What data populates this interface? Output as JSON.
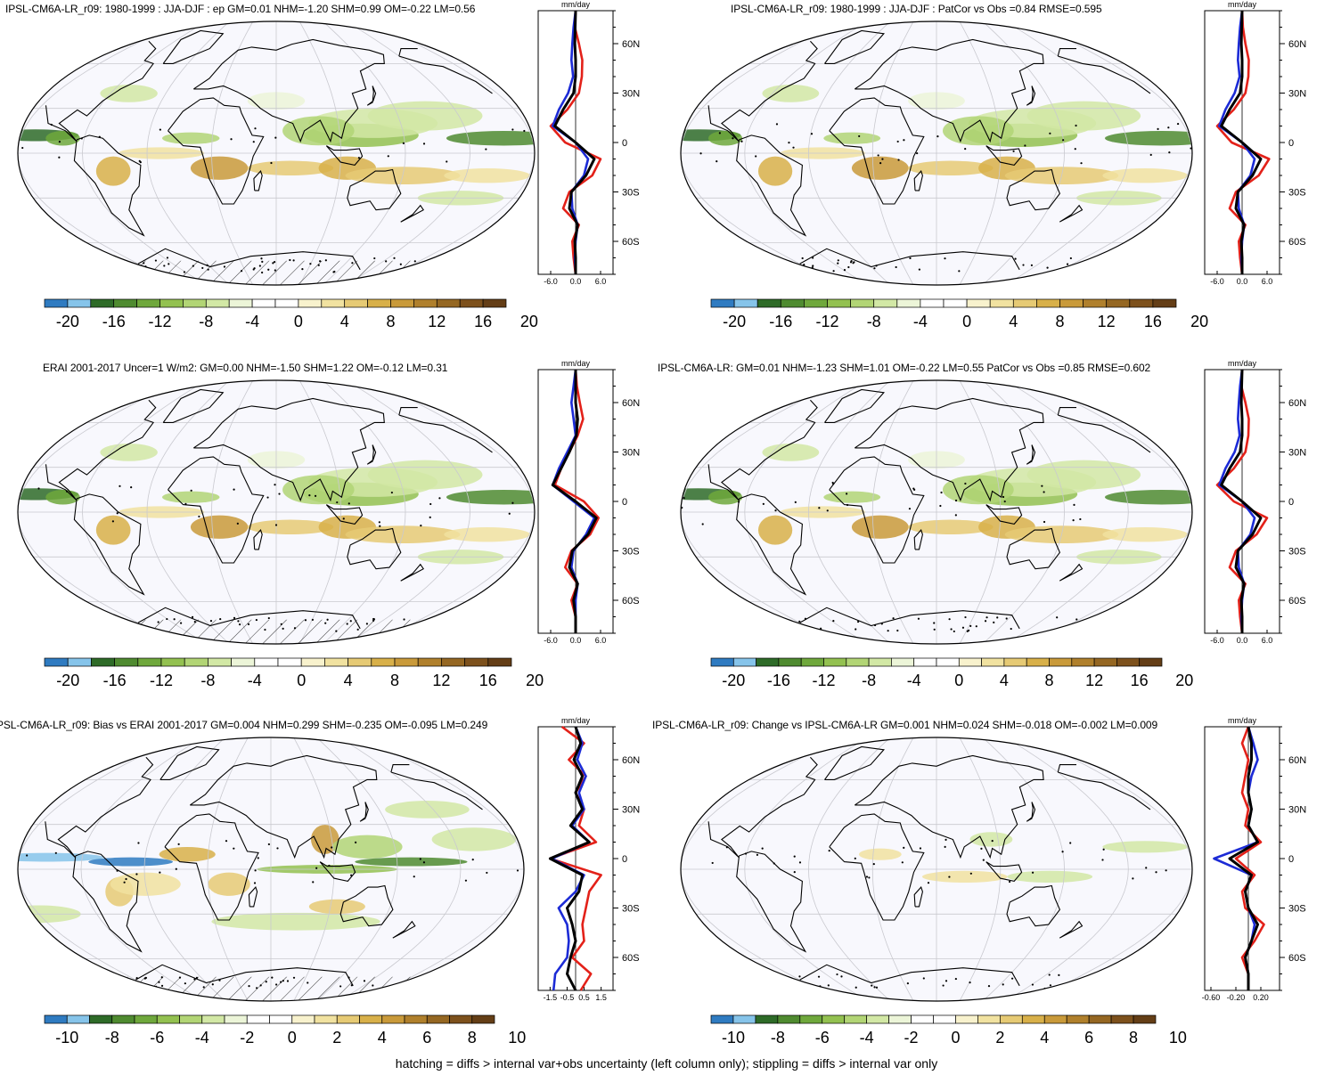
{
  "panels": [
    {
      "id": "p1",
      "title": "IPSL-CM6A-LR_r09: 1980-1999 : JJA-DJF : ep GM=0.01 NHM=-1.20 SHM=0.99 OM=-0.22 LM=0.56",
      "unit": "mm/day",
      "colorbar_ticks": [
        "-20",
        "-16",
        "-12",
        "-8",
        "-4",
        "0",
        "4",
        "8",
        "12",
        "16",
        "20"
      ],
      "profile_xticks": [
        "-6.0",
        "0.0",
        "6.0"
      ],
      "profile_lat_ticks": [
        "60N",
        "30N",
        "0",
        "30S",
        "60S"
      ],
      "hatching": true
    },
    {
      "id": "p2",
      "title": "IPSL-CM6A-LR_r09: 1980-1999 : JJA-DJF : PatCor vs Obs =0.84 RMSE=0.595",
      "unit": "mm/day",
      "colorbar_ticks": [
        "-20",
        "-16",
        "-12",
        "-8",
        "-4",
        "0",
        "4",
        "8",
        "12",
        "16",
        "20"
      ],
      "profile_xticks": [
        "-6.0",
        "0.0",
        "6.0"
      ],
      "profile_lat_ticks": [
        "60N",
        "30N",
        "0",
        "30S",
        "60S"
      ],
      "hatching": false
    },
    {
      "id": "p3",
      "title": "ERAI 2001-2017 Uncer=1 W/m2: GM=0.00 NHM=-1.50 SHM=1.22 OM=-0.12 LM=0.31",
      "unit": "mm/day",
      "colorbar_ticks": [
        "-20",
        "-16",
        "-12",
        "-8",
        "-4",
        "0",
        "4",
        "8",
        "12",
        "16",
        "20"
      ],
      "profile_xticks": [
        "-6.0",
        "0.0",
        "6.0"
      ],
      "profile_lat_ticks": [
        "60N",
        "30N",
        "0",
        "30S",
        "60S"
      ],
      "hatching": true
    },
    {
      "id": "p4",
      "title": "IPSL-CM6A-LR: GM=0.01 NHM=-1.23 SHM=1.01 OM=-0.22 LM=0.55 PatCor vs Obs =0.85 RMSE=0.602",
      "unit": "mm/day",
      "colorbar_ticks": [
        "-20",
        "-16",
        "-12",
        "-8",
        "-4",
        "0",
        "4",
        "8",
        "12",
        "16",
        "20"
      ],
      "profile_xticks": [
        "-6.0",
        "0.0",
        "6.0"
      ],
      "profile_lat_ticks": [
        "60N",
        "30N",
        "0",
        "30S",
        "60S"
      ],
      "hatching": false
    },
    {
      "id": "p5",
      "title": "PSL-CM6A-LR_r09: Bias vs ERAI 2001-2017 GM=0.004 NHM=0.299 SHM=-0.235 OM=-0.095 LM=0.249",
      "unit": "mm/day",
      "colorbar_ticks": [
        "-10",
        "-8",
        "-6",
        "-4",
        "-2",
        "0",
        "2",
        "4",
        "6",
        "8",
        "10"
      ],
      "profile_xticks": [
        "-1.5",
        "-0.5",
        "0.5",
        "1.5"
      ],
      "profile_lat_ticks": [
        "60N",
        "30N",
        "0",
        "30S",
        "60S"
      ],
      "hatching": true
    },
    {
      "id": "p6",
      "title": "IPSL-CM6A-LR_r09: Change vs IPSL-CM6A-LR GM=0.001 NHM=0.024 SHM=-0.018 OM=-0.002 LM=0.009",
      "unit": "mm/day",
      "colorbar_ticks": [
        "-10",
        "-8",
        "-6",
        "-4",
        "-2",
        "0",
        "2",
        "4",
        "6",
        "8",
        "10"
      ],
      "profile_xticks": [
        "-0.60",
        "-0.20",
        "0.20"
      ],
      "profile_lat_ticks": [
        "60N",
        "30N",
        "0",
        "30S",
        "60S"
      ],
      "hatching": false
    }
  ],
  "colorbar_colors": [
    "#2f7bc1",
    "#86c4ea",
    "#2e6b28",
    "#4f8b30",
    "#6fa83c",
    "#93c150",
    "#b2d575",
    "#d2e8a5",
    "#ecf5d8",
    "#ffffff",
    "#ffffff",
    "#f8f2cd",
    "#f1e2a0",
    "#e6ca74",
    "#d8b049",
    "#c99a3a",
    "#b0802c",
    "#956722",
    "#7d511c",
    "#643e16"
  ],
  "footnote": "hatching = diffs > internal var+obs uncertainty (left column only); stippling = diffs > internal var only",
  "chart_data": [
    {
      "type": "line",
      "title": "IPSL-CM6A-LR_r09: 1980-1999 : JJA-DJF : ep GM=0.01 NHM=-1.20 SHM=0.99 OM=-0.22 LM=0.56",
      "xlabel": "mm/day",
      "xlim": [
        -9,
        9
      ],
      "y": [
        80,
        70,
        60,
        50,
        40,
        30,
        20,
        10,
        0,
        -10,
        -20,
        -30,
        -40,
        -50,
        -60,
        -70,
        -80
      ],
      "series": [
        {
          "color": "#e32119",
          "values": [
            0.0,
            -0.2,
            0.8,
            1.6,
            1.5,
            0.8,
            -2.0,
            -6.0,
            -2.5,
            6.0,
            4.0,
            -1.5,
            -3.0,
            0.8,
            -0.8,
            -0.5,
            0.0
          ]
        },
        {
          "color": "#1c2bd6",
          "values": [
            0.0,
            -0.5,
            -0.8,
            -1.0,
            -0.6,
            -1.8,
            -4.0,
            -5.5,
            0.0,
            3.0,
            2.0,
            -1.0,
            -0.8,
            0.5,
            0.0,
            -0.2,
            0.0
          ]
        },
        {
          "color": "#000000",
          "values": [
            0.0,
            -0.1,
            -0.2,
            0.0,
            0.0,
            -0.5,
            -3.0,
            -5.0,
            0.0,
            4.5,
            2.5,
            -1.0,
            -1.5,
            0.5,
            -0.2,
            0.0,
            0.0
          ]
        }
      ]
    },
    {
      "type": "line",
      "title": "IPSL-CM6A-LR_r09: 1980-1999 : JJA-DJF : PatCor vs Obs =0.84 RMSE=0.595",
      "xlabel": "mm/day",
      "xlim": [
        -9,
        9
      ],
      "y": [
        80,
        70,
        60,
        50,
        40,
        30,
        20,
        10,
        0,
        -10,
        -20,
        -30,
        -40,
        -50,
        -60,
        -70,
        -80
      ],
      "series": [
        {
          "color": "#e32119",
          "values": [
            0.0,
            0.2,
            0.8,
            1.6,
            1.5,
            0.8,
            -2.0,
            -6.0,
            -2.5,
            6.5,
            4.0,
            -1.5,
            -3.0,
            0.8,
            -0.8,
            -0.5,
            0.0
          ]
        },
        {
          "color": "#1c2bd6",
          "values": [
            0.0,
            -0.5,
            -0.8,
            -1.0,
            -0.6,
            -1.8,
            -4.0,
            -5.5,
            0.0,
            3.0,
            2.0,
            -1.0,
            -0.8,
            0.5,
            0.0,
            -0.2,
            0.0
          ]
        },
        {
          "color": "#000000",
          "values": [
            0.0,
            -0.1,
            -0.2,
            0.0,
            0.0,
            -0.5,
            -3.0,
            -5.0,
            0.0,
            4.5,
            2.5,
            -1.0,
            -1.5,
            0.5,
            -0.2,
            0.0,
            0.0
          ]
        }
      ]
    },
    {
      "type": "line",
      "title": "ERAI 2001-2017 Uncer=1 W/m2: GM=0.00 NHM=-1.50 SHM=1.22 OM=-0.12 LM=0.31",
      "xlabel": "mm/day",
      "xlim": [
        -9,
        9
      ],
      "y": [
        80,
        70,
        60,
        50,
        40,
        30,
        20,
        10,
        0,
        -10,
        -20,
        -30,
        -40,
        -50,
        -60,
        -70,
        -80
      ],
      "series": [
        {
          "color": "#e32119",
          "values": [
            0.0,
            0.3,
            1.0,
            1.8,
            0.5,
            -1.5,
            -3.5,
            -5.0,
            2.0,
            5.5,
            3.5,
            -1.0,
            -2.5,
            0.5,
            -1.0,
            0.0,
            0.0
          ]
        },
        {
          "color": "#1c2bd6",
          "values": [
            0.0,
            -0.5,
            -1.0,
            -0.5,
            0.0,
            -2.0,
            -4.0,
            -5.5,
            -0.5,
            4.5,
            2.5,
            -0.5,
            -1.0,
            0.5,
            0.0,
            0.0,
            0.0
          ]
        },
        {
          "color": "#000000",
          "values": [
            0.0,
            0.0,
            0.0,
            0.5,
            0.2,
            -1.5,
            -3.5,
            -5.5,
            0.0,
            5.0,
            3.0,
            -0.8,
            -1.5,
            0.5,
            -0.5,
            0.0,
            0.0
          ]
        }
      ]
    },
    {
      "type": "line",
      "title": "IPSL-CM6A-LR: GM=0.01 NHM=-1.23 SHM=1.01 OM=-0.22 LM=0.55 PatCor vs Obs =0.85 RMSE=0.602",
      "xlabel": "mm/day",
      "xlim": [
        -9,
        9
      ],
      "y": [
        80,
        70,
        60,
        50,
        40,
        30,
        20,
        10,
        0,
        -10,
        -20,
        -30,
        -40,
        -50,
        -60,
        -70,
        -80
      ],
      "series": [
        {
          "color": "#e32119",
          "values": [
            0.0,
            -0.2,
            0.8,
            1.6,
            1.5,
            0.8,
            -2.0,
            -6.0,
            -2.0,
            6.0,
            3.5,
            -1.5,
            -3.0,
            0.8,
            -0.8,
            -0.5,
            0.0
          ]
        },
        {
          "color": "#1c2bd6",
          "values": [
            0.0,
            -0.5,
            -0.8,
            -1.0,
            -0.6,
            -1.8,
            -4.0,
            -5.5,
            0.0,
            3.0,
            2.0,
            -1.0,
            -0.8,
            0.5,
            0.0,
            -0.2,
            0.0
          ]
        },
        {
          "color": "#000000",
          "values": [
            0.0,
            -0.1,
            -0.2,
            0.0,
            0.0,
            -0.5,
            -3.0,
            -5.0,
            0.0,
            4.5,
            2.5,
            -1.0,
            -1.5,
            0.5,
            -0.2,
            0.0,
            0.0
          ]
        }
      ]
    },
    {
      "type": "line",
      "title": "PSL-CM6A-LR_r09: Bias vs ERAI 2001-2017 GM=0.004 NHM=0.299 SHM=-0.235 OM=-0.095 LM=0.249",
      "xlabel": "mm/day",
      "xlim": [
        -2.2,
        2.2
      ],
      "y": [
        80,
        70,
        60,
        50,
        40,
        30,
        20,
        10,
        0,
        -10,
        -20,
        -30,
        -40,
        -50,
        -60,
        -70,
        -80
      ],
      "series": [
        {
          "color": "#e32119",
          "values": [
            -0.8,
            0.5,
            -0.4,
            0.6,
            0.0,
            0.5,
            0.2,
            1.2,
            -1.5,
            1.5,
            0.8,
            0.6,
            0.4,
            0.5,
            -0.2,
            0.9,
            0.3
          ]
        },
        {
          "color": "#1c2bd6",
          "values": [
            0.0,
            0.4,
            0.1,
            0.6,
            0.2,
            0.5,
            -0.2,
            0.8,
            -1.4,
            0.5,
            0.0,
            -1.0,
            -0.5,
            -0.4,
            -0.5,
            -1.2,
            -1.3
          ]
        },
        {
          "color": "#000000",
          "values": [
            0.0,
            0.3,
            -0.1,
            0.4,
            0.0,
            0.4,
            -0.3,
            0.8,
            -1.5,
            0.4,
            0.2,
            -0.5,
            -0.2,
            0.0,
            -0.3,
            -0.5,
            0.0
          ]
        }
      ]
    },
    {
      "type": "line",
      "title": "IPSL-CM6A-LR_r09: Change vs IPSL-CM6A-LR GM=0.001 NHM=0.024 SHM=-0.018 OM=-0.002 LM=0.009",
      "xlabel": "mm/day",
      "xlim": [
        -0.7,
        0.5
      ],
      "y": [
        80,
        70,
        60,
        50,
        40,
        30,
        20,
        10,
        0,
        -10,
        -20,
        -30,
        -40,
        -50,
        -60,
        -70,
        -80
      ],
      "series": [
        {
          "color": "#e32119",
          "values": [
            0.0,
            -0.1,
            0.0,
            -0.05,
            -0.1,
            0.0,
            -0.05,
            0.2,
            -0.2,
            0.1,
            -0.1,
            -0.05,
            0.25,
            0.1,
            -0.1,
            0.0,
            0.0
          ]
        },
        {
          "color": "#1c2bd6",
          "values": [
            0.0,
            0.08,
            0.15,
            0.05,
            0.0,
            0.05,
            0.0,
            0.15,
            -0.55,
            0.05,
            -0.05,
            0.0,
            0.1,
            0.05,
            -0.05,
            0.0,
            0.0
          ]
        },
        {
          "color": "#000000",
          "values": [
            0.0,
            0.05,
            0.05,
            0.0,
            0.0,
            0.05,
            0.0,
            0.15,
            -0.3,
            0.05,
            -0.05,
            0.0,
            0.15,
            0.05,
            -0.05,
            0.0,
            0.0
          ]
        }
      ]
    }
  ]
}
